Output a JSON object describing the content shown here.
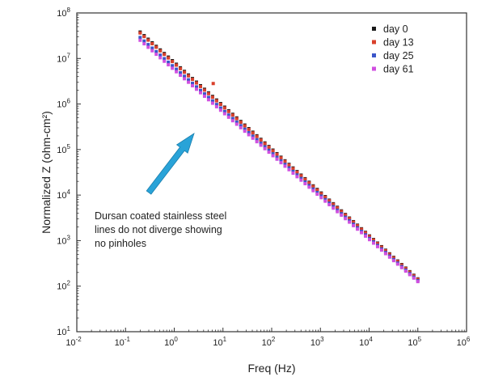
{
  "chart_data": {
    "type": "scatter",
    "title": "",
    "xlabel": "Freq (Hz)",
    "ylabel": "Normalized Z (ohm-cm²)",
    "xscale": "log",
    "yscale": "log",
    "xlim_exp": [
      -2,
      6
    ],
    "ylim_exp": [
      1,
      8
    ],
    "x_ticks": [
      {
        "base": "10",
        "exp": "-2"
      },
      {
        "base": "10",
        "exp": "-1"
      },
      {
        "base": "10",
        "exp": "0"
      },
      {
        "base": "10",
        "exp": "1"
      },
      {
        "base": "10",
        "exp": "2"
      },
      {
        "base": "10",
        "exp": "3"
      },
      {
        "base": "10",
        "exp": "4"
      },
      {
        "base": "10",
        "exp": "5"
      },
      {
        "base": "10",
        "exp": "6"
      }
    ],
    "y_ticks": [
      {
        "base": "10",
        "exp": "1"
      },
      {
        "base": "10",
        "exp": "2"
      },
      {
        "base": "10",
        "exp": "3"
      },
      {
        "base": "10",
        "exp": "4"
      },
      {
        "base": "10",
        "exp": "5"
      },
      {
        "base": "10",
        "exp": "6"
      },
      {
        "base": "10",
        "exp": "7"
      },
      {
        "base": "10",
        "exp": "8"
      }
    ],
    "grid": false,
    "legend_position": "top-right",
    "series": [
      {
        "name": "day 0",
        "color": "#1a1a1a",
        "log_x_start": -0.7,
        "log_x_end": 5.0,
        "log_y_start": 7.58,
        "log_y_end": 2.16,
        "points": 70
      },
      {
        "name": "day 13",
        "color": "#d9402b",
        "log_x_start": -0.7,
        "log_x_end": 5.0,
        "log_y_start": 7.56,
        "log_y_end": 2.15,
        "points": 70
      },
      {
        "name": "day 25",
        "color": "#3b55c9",
        "log_x_start": -0.7,
        "log_x_end": 5.0,
        "log_y_start": 7.46,
        "log_y_end": 2.12,
        "points": 70
      },
      {
        "name": "day 61",
        "color": "#d04fe0",
        "log_x_start": -0.7,
        "log_x_end": 5.0,
        "log_y_start": 7.4,
        "log_y_end": 2.1,
        "points": 70
      }
    ],
    "outlier": {
      "series": "day 13",
      "log_x": 0.8,
      "log_y": 6.45
    },
    "annotation": {
      "lines": [
        "Dursan coated stainless steel",
        "lines do not diverge showing",
        "no pinholes"
      ],
      "arrow_color": "#29a3d8"
    }
  }
}
